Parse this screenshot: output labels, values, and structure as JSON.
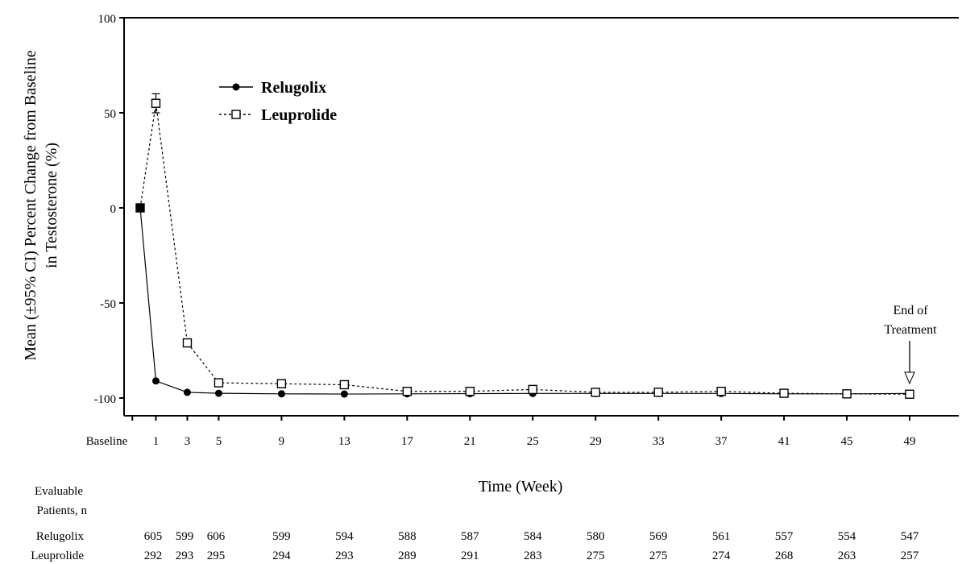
{
  "chart_data": {
    "type": "line",
    "ylabel_line1": "Mean (±95% CI) Percent Change from Baseline",
    "ylabel_line2": "in Testosterone (%)",
    "xlabel": "Time (Week)",
    "ylim": [
      -110,
      100
    ],
    "yticks": [
      100,
      50,
      0,
      -50,
      -100
    ],
    "xticks": [
      {
        "label": "Baseline",
        "x": -0.5
      },
      {
        "label": "1",
        "x": 1
      },
      {
        "label": "3",
        "x": 3
      },
      {
        "label": "5",
        "x": 5
      },
      {
        "label": "9",
        "x": 9
      },
      {
        "label": "13",
        "x": 13
      },
      {
        "label": "17",
        "x": 17
      },
      {
        "label": "21",
        "x": 21
      },
      {
        "label": "25",
        "x": 25
      },
      {
        "label": "29",
        "x": 29
      },
      {
        "label": "33",
        "x": 33
      },
      {
        "label": "37",
        "x": 37
      },
      {
        "label": "41",
        "x": 41
      },
      {
        "label": "45",
        "x": 45
      },
      {
        "label": "49",
        "x": 49
      }
    ],
    "x": [
      0,
      1,
      3,
      5,
      9,
      13,
      17,
      21,
      25,
      29,
      33,
      37,
      41,
      45,
      49
    ],
    "series": [
      {
        "name": "Relugolix",
        "marker": "filled-circle",
        "line": "solid",
        "values": [
          0,
          -91,
          -97,
          -97.5,
          -97.8,
          -97.9,
          -97.8,
          -97.7,
          -97.6,
          -97.6,
          -97.6,
          -97.6,
          -97.8,
          -97.8,
          -97.6
        ]
      },
      {
        "name": "Leuprolide",
        "marker": "open-square",
        "line": "dashed",
        "values": [
          0,
          55,
          -71,
          -92,
          -92.5,
          -93,
          -96.5,
          -96.5,
          -95.5,
          -97,
          -97,
          -96.5,
          -97.5,
          -97.8,
          -98
        ],
        "ci": [
          null,
          [
            50,
            60
          ],
          null,
          null,
          null,
          null,
          null,
          null,
          null,
          null,
          null,
          null,
          null,
          null,
          null
        ]
      }
    ],
    "legend_position": "top-left",
    "annotation": {
      "line1": "End of",
      "line2": "Treatment",
      "x": 49
    }
  },
  "table": {
    "header_line1": "Evaluable",
    "header_line2": "Patients, n",
    "rows": [
      {
        "label": "Relugolix",
        "values": [
          "605",
          "599",
          "606",
          "599",
          "594",
          "588",
          "587",
          "584",
          "580",
          "569",
          "561",
          "557",
          "554",
          "547"
        ]
      },
      {
        "label": "Leuprolide",
        "values": [
          "292",
          "293",
          "295",
          "294",
          "293",
          "289",
          "291",
          "283",
          "275",
          "275",
          "274",
          "268",
          "263",
          "257"
        ]
      }
    ]
  }
}
